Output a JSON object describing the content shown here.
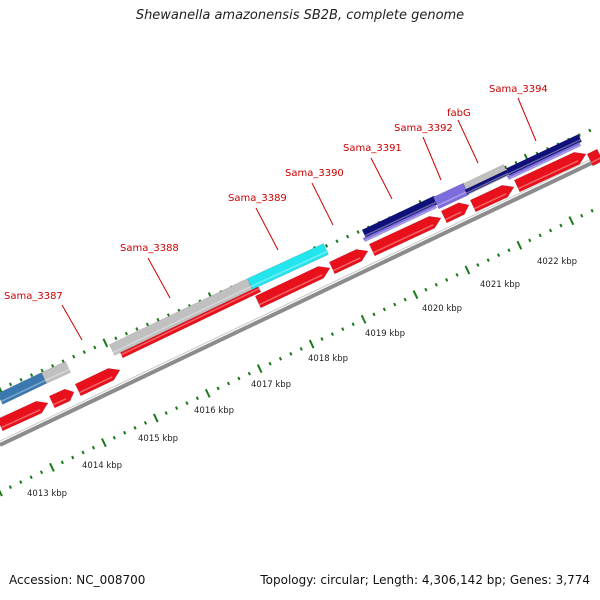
{
  "title": "Shewanella amazonensis SB2B, complete genome",
  "accession": "Accession: NC_008700",
  "summary": "Topology: circular; Length: 4,306,142 bp; Genes: 3,774",
  "colors": {
    "backbone": "#8c8c8c",
    "forward_cds": "#e8101a",
    "label": "#cc0000",
    "tick": "#1a7a1a",
    "gray_feature": "#c0c0c0",
    "cyan_feature": "#22e5ee",
    "steelblue_feature": "#3a78b0",
    "navy_feature": "#10107a",
    "slateblue_feature": "#7c6cdd"
  },
  "scale": {
    "kbp_labels": [
      "4013 kbp",
      "4014 kbp",
      "4015 kbp",
      "4016 kbp",
      "4017 kbp",
      "4018 kbp",
      "4019 kbp",
      "4020 kbp",
      "4021 kbp",
      "4022 kbp"
    ]
  },
  "gene_labels": [
    "Sama_3387",
    "Sama_3388",
    "Sama_3389",
    "Sama_3390",
    "Sama_3391",
    "Sama_3392",
    "fabG",
    "Sama_3394"
  ]
}
